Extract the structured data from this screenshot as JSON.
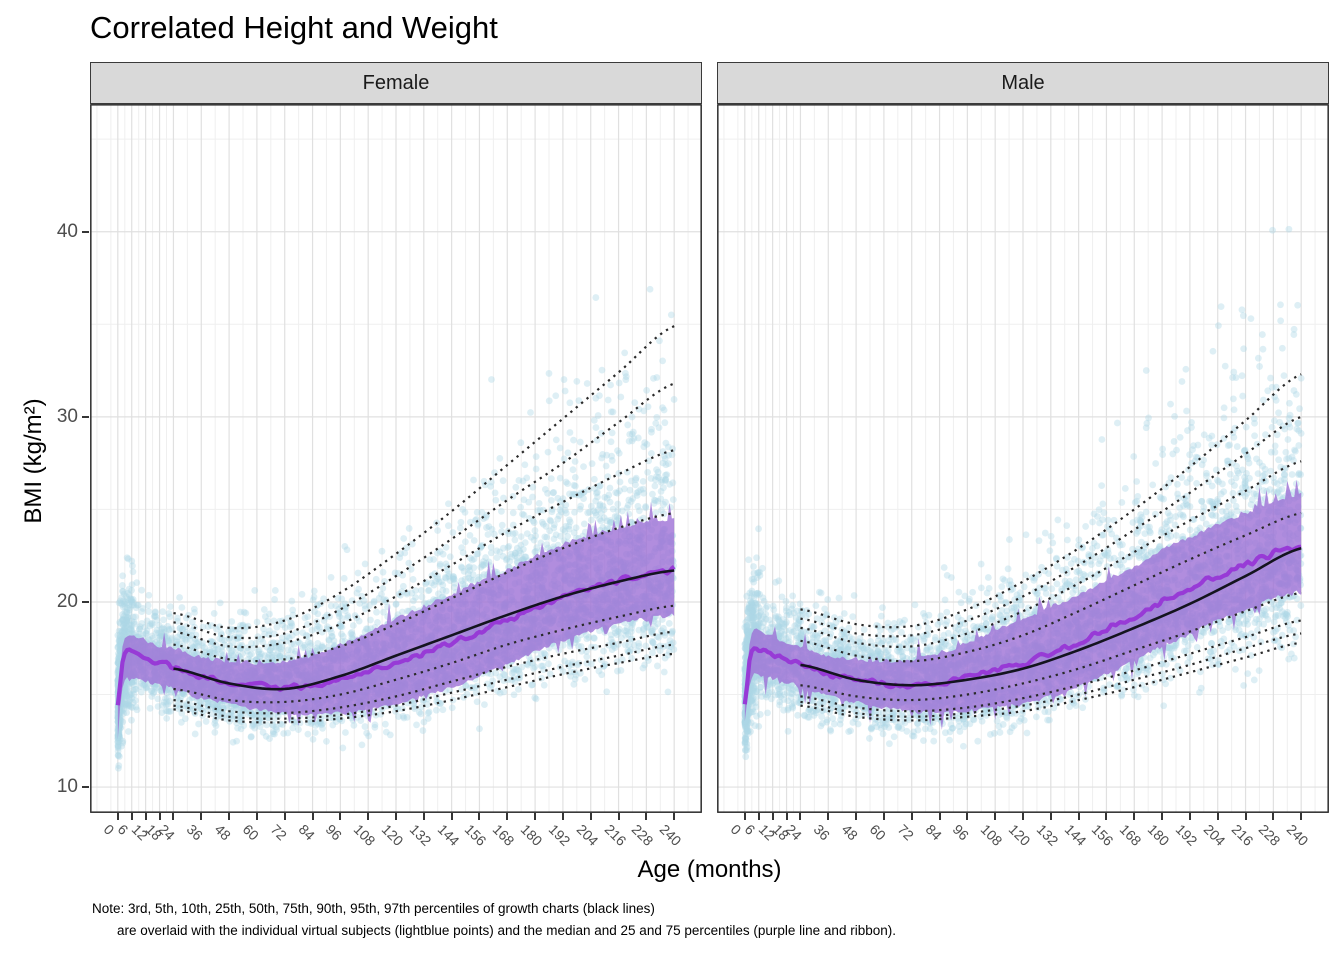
{
  "chart_data": {
    "type": "scatter",
    "title": "Correlated Height and Weight",
    "xlabel": "Age (months)",
    "ylabel": "BMI (kg/m²)",
    "facets": [
      "Female",
      "Male"
    ],
    "x_ticks": [
      0,
      6,
      12,
      18,
      24,
      36,
      48,
      60,
      72,
      84,
      96,
      108,
      120,
      132,
      144,
      156,
      168,
      180,
      192,
      204,
      216,
      228,
      240
    ],
    "y_ticks": [
      10,
      20,
      30,
      40
    ],
    "y_minor": [
      15,
      25,
      35,
      45
    ],
    "xlim": [
      -12,
      252
    ],
    "ylim": [
      8.6,
      46.9
    ],
    "grid": true,
    "legend": "none",
    "note_line1": "Note: 3rd, 5th, 10th, 25th, 50th, 75th, 90th, 95th, 97th percentiles of growth charts (black lines)",
    "note_line2": "are overlaid with the individual virtual subjects (lightblue points) and the median and 25 and 75 percentiles (purple line and ribbon).",
    "growth_chart": {
      "ages": [
        24,
        48,
        72,
        96,
        120,
        144,
        168,
        192,
        216,
        240
      ],
      "percentile_names": [
        "3rd",
        "5th",
        "10th",
        "25th",
        "50th",
        "75th",
        "90th",
        "95th",
        "97th"
      ],
      "Female": {
        "p3": [
          14.2,
          13.6,
          13.5,
          13.7,
          14.1,
          14.7,
          15.4,
          16.1,
          16.7,
          17.2
        ],
        "p5": [
          14.4,
          13.8,
          13.7,
          13.9,
          14.4,
          15.1,
          15.8,
          16.5,
          17.1,
          17.7
        ],
        "p10": [
          14.7,
          14.1,
          14.0,
          14.3,
          14.9,
          15.7,
          16.5,
          17.2,
          17.8,
          18.4
        ],
        "p25": [
          15.3,
          14.7,
          14.6,
          15.0,
          15.8,
          16.7,
          17.7,
          18.5,
          19.2,
          19.8
        ],
        "p50": [
          16.4,
          15.6,
          15.3,
          16.0,
          17.1,
          18.2,
          19.3,
          20.3,
          21.1,
          21.7
        ],
        "p75": [
          17.7,
          16.9,
          16.9,
          17.6,
          18.8,
          20.2,
          21.6,
          22.9,
          24.0,
          24.8
        ],
        "p90": [
          18.4,
          17.6,
          17.8,
          18.8,
          20.3,
          22.0,
          23.8,
          25.4,
          26.9,
          28.2
        ],
        "p95": [
          18.9,
          18.1,
          18.3,
          19.6,
          21.4,
          23.4,
          25.5,
          27.5,
          29.7,
          31.8
        ],
        "p97": [
          19.4,
          18.6,
          19.0,
          20.5,
          22.6,
          24.9,
          27.4,
          29.9,
          32.4,
          34.9
        ]
      },
      "Male": {
        "p3": [
          14.4,
          13.8,
          13.6,
          13.8,
          14.1,
          14.7,
          15.4,
          16.2,
          17.0,
          17.8
        ],
        "p5": [
          14.6,
          14.0,
          13.8,
          14.0,
          14.4,
          15.0,
          15.8,
          16.6,
          17.5,
          18.3
        ],
        "p10": [
          14.9,
          14.3,
          14.1,
          14.3,
          14.8,
          15.5,
          16.3,
          17.2,
          18.1,
          19.0
        ],
        "p25": [
          15.5,
          14.9,
          14.7,
          15.0,
          15.6,
          16.4,
          17.4,
          18.4,
          19.5,
          20.5
        ],
        "p50": [
          16.6,
          15.8,
          15.5,
          15.8,
          16.4,
          17.4,
          18.6,
          19.9,
          21.4,
          22.9
        ],
        "p75": [
          17.9,
          17.1,
          16.8,
          17.3,
          18.2,
          19.5,
          20.9,
          22.3,
          23.6,
          24.8
        ],
        "p90": [
          18.6,
          17.8,
          17.6,
          18.3,
          19.5,
          21.0,
          22.7,
          24.4,
          26.0,
          27.6
        ],
        "p95": [
          19.1,
          18.3,
          18.2,
          19.0,
          20.3,
          22.0,
          23.9,
          25.9,
          28.0,
          30.0
        ],
        "p97": [
          19.6,
          18.8,
          18.7,
          19.6,
          21.1,
          22.9,
          25.0,
          27.3,
          29.8,
          32.3
        ]
      }
    },
    "subjects": {
      "ages": [
        0,
        2,
        4,
        6,
        9,
        12,
        18,
        24,
        36,
        48,
        60,
        72,
        84,
        96,
        108,
        120,
        132,
        144,
        156,
        168,
        180,
        192,
        204,
        216,
        228,
        240
      ],
      "Female": {
        "median": [
          14.3,
          16.6,
          17.3,
          17.3,
          17.2,
          17.0,
          16.7,
          16.5,
          16.0,
          15.7,
          15.5,
          15.4,
          15.5,
          15.8,
          16.2,
          16.7,
          17.2,
          17.8,
          18.4,
          19.0,
          19.7,
          20.3,
          20.8,
          21.2,
          21.5,
          21.7
        ]
      },
      "Male": {
        "median": [
          14.5,
          16.8,
          17.5,
          17.5,
          17.4,
          17.2,
          16.9,
          16.6,
          16.1,
          15.8,
          15.6,
          15.5,
          15.6,
          15.9,
          16.3,
          16.7,
          17.2,
          17.8,
          18.5,
          19.2,
          20.0,
          20.7,
          21.4,
          22.0,
          22.6,
          23.0
        ]
      },
      "q25_offset": [
        0.8,
        1.2,
        1.3,
        1.4,
        1.3,
        1.2,
        1.1,
        1.1,
        1.1,
        1.1,
        1.2,
        1.3,
        1.5,
        1.7,
        1.9,
        2.1,
        2.2,
        2.3,
        2.3,
        2.3,
        2.3,
        2.3,
        2.3,
        2.3,
        2.3,
        2.3
      ],
      "q75_offset": [
        0.6,
        0.8,
        0.8,
        0.8,
        0.8,
        0.8,
        0.8,
        0.9,
        0.9,
        1.0,
        1.1,
        1.3,
        1.5,
        1.8,
        2.1,
        2.3,
        2.4,
        2.5,
        2.6,
        2.6,
        2.7,
        2.7,
        2.7,
        2.7,
        2.7,
        2.7
      ]
    },
    "scatter_spec": {
      "n_per_facet": 5200,
      "radius": 3.4,
      "seeds": {
        "Female": 101,
        "Male": 202
      }
    },
    "colors": {
      "points": "#ADD8E6",
      "points_alpha": 0.4,
      "ribbon": "rgba(158,112,214,0.80)",
      "median_line": "rgba(151,54,214,0.95)",
      "growth_dotted": "#2a2a2a",
      "growth_solid": "#14141f",
      "grid_major": "#e0e0e0",
      "grid_minor": "#efefef",
      "panel_border": "#3a3a3a",
      "strip_bg": "#D9D9D9",
      "axis_text": "#4d4d4d"
    }
  }
}
